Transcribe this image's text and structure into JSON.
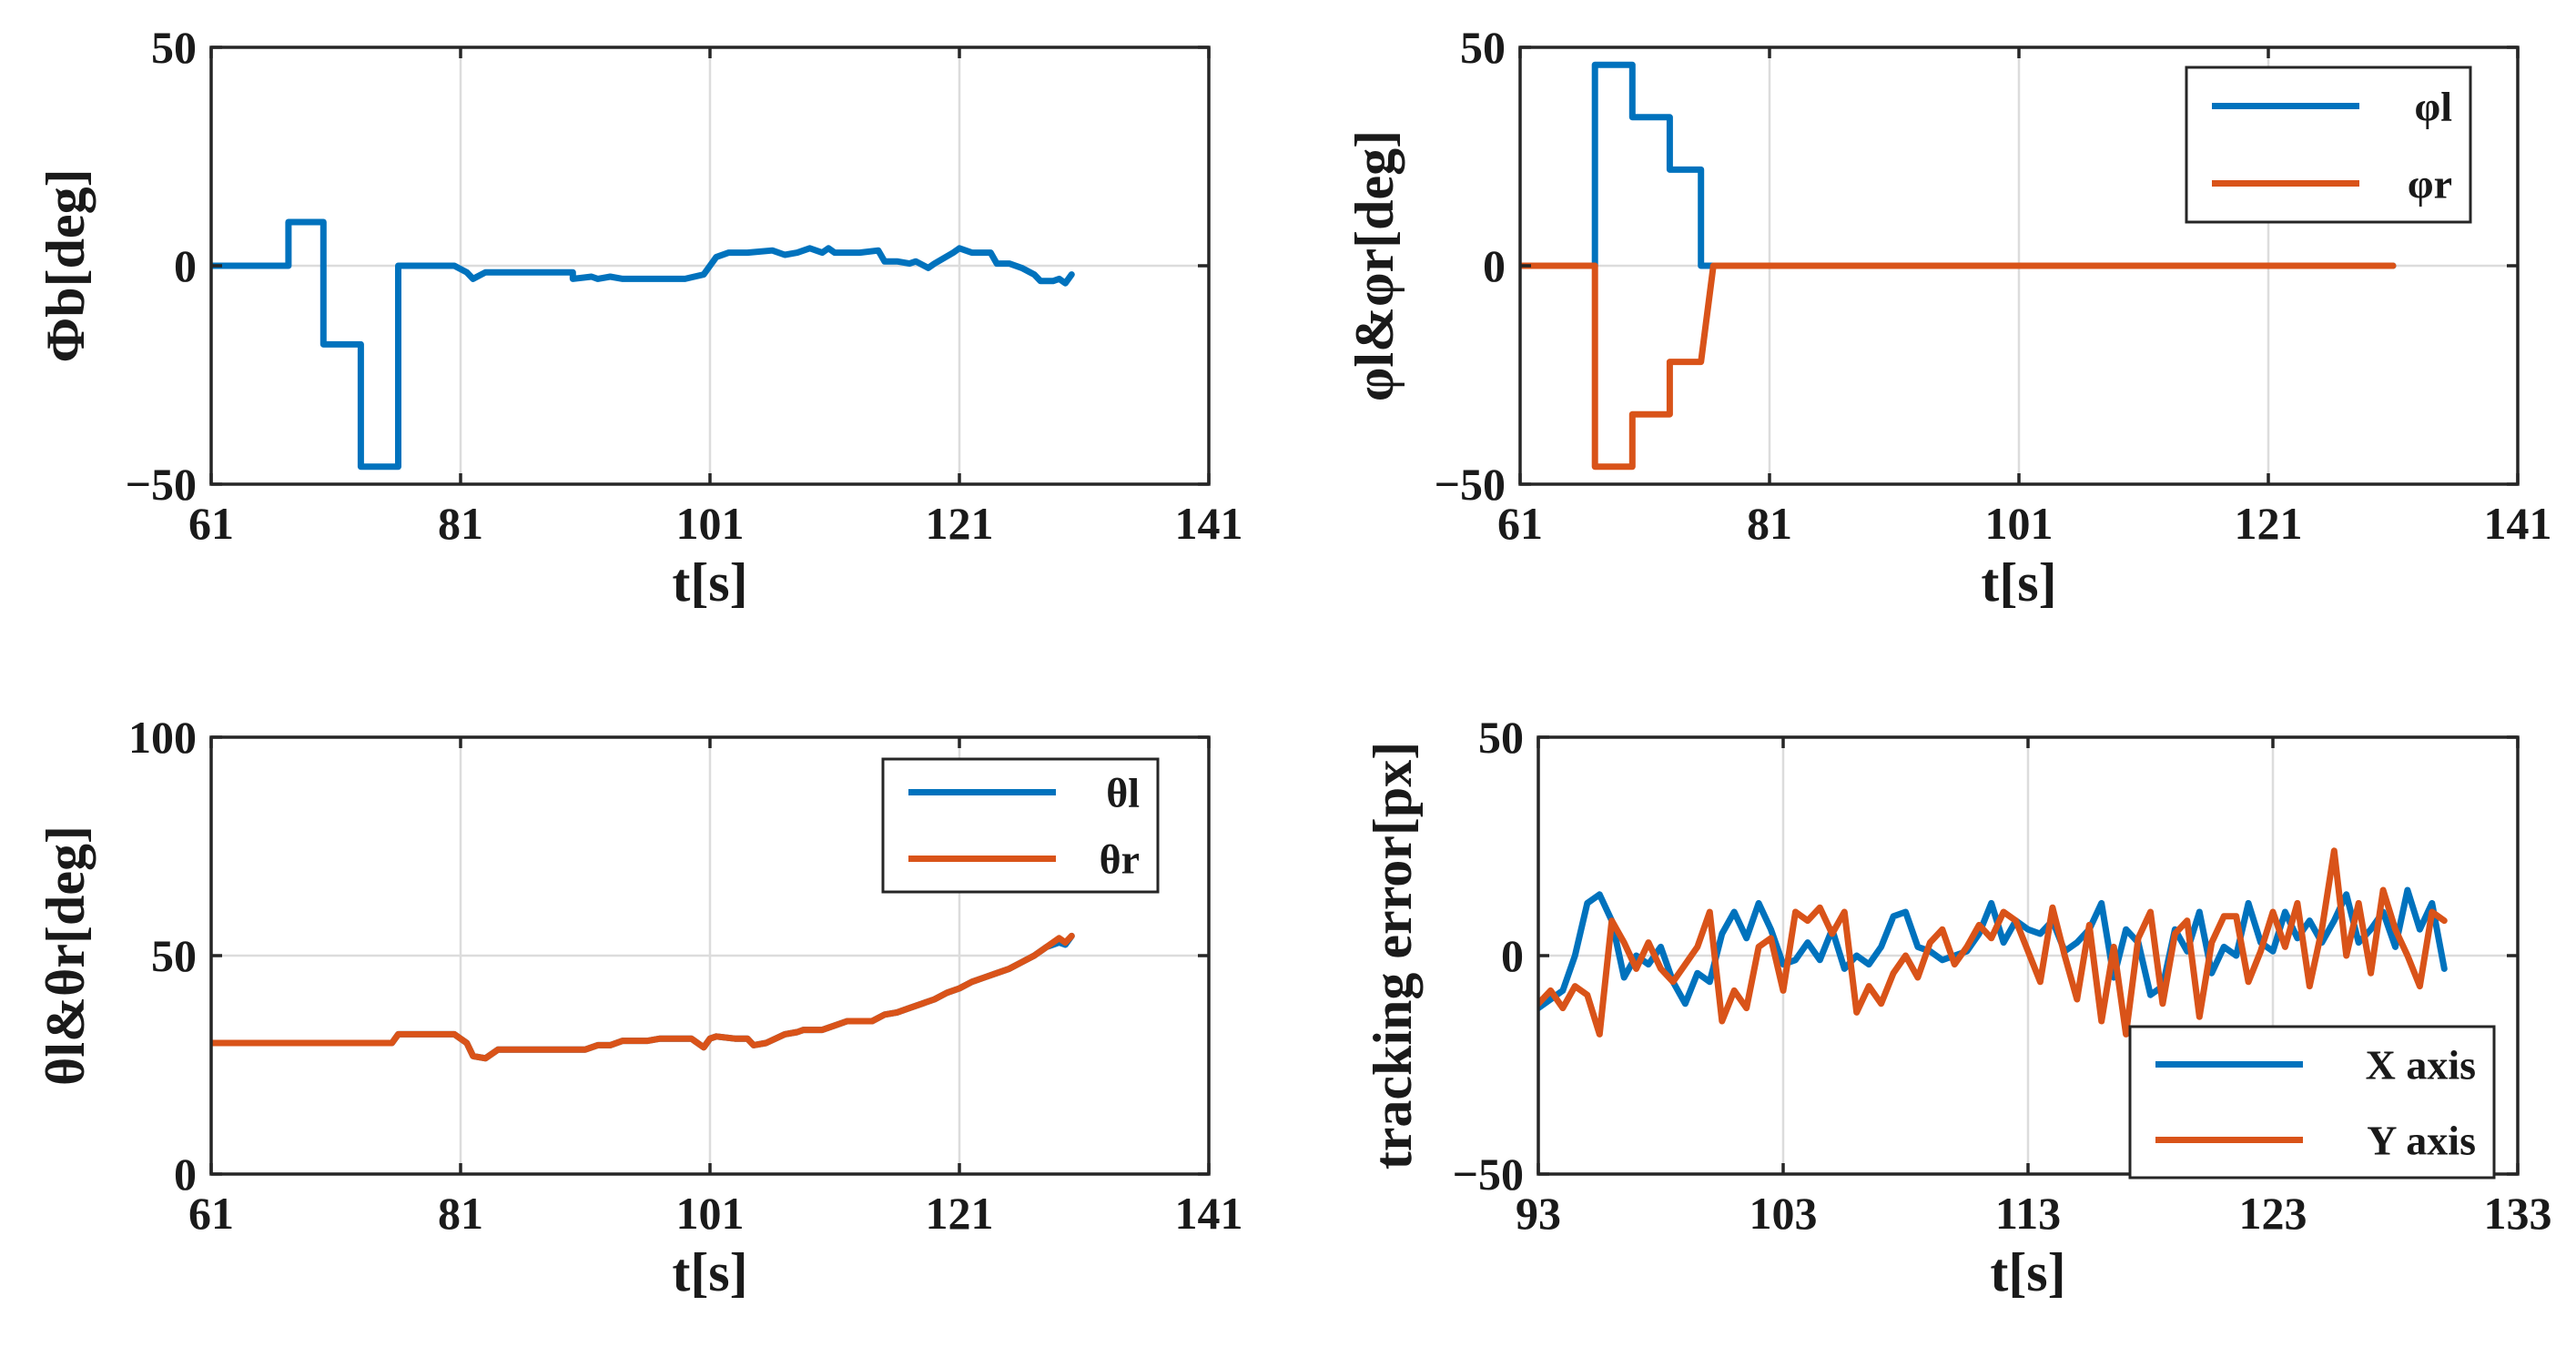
{
  "colors": {
    "blue": "#0072BD",
    "orange": "#D95319"
  },
  "chart_data": [
    {
      "type": "line",
      "xlabel": "t[s]",
      "ylabel": "Φb[deg]",
      "xlim": [
        61,
        141
      ],
      "ylim": [
        -50,
        50
      ],
      "xticks": [
        61,
        81,
        101,
        121,
        141
      ],
      "xtick_labels": [
        "61",
        "81",
        "101",
        "121",
        "141"
      ],
      "yticks": [
        -50,
        0,
        50
      ],
      "ytick_labels": [
        "−50",
        "0",
        "50"
      ],
      "grid": true,
      "legend": null,
      "series": [
        {
          "name": "Φb",
          "color": "#0072BD",
          "x": [
            61,
            67.2,
            67.2,
            70,
            70,
            73,
            73,
            76,
            76,
            80.5,
            81.5,
            82,
            83,
            90,
            90,
            91.5,
            92,
            93,
            94,
            95,
            96,
            98,
            99,
            100.5,
            101,
            101.5,
            102.5,
            104,
            106,
            107,
            108,
            109,
            110,
            110.5,
            111,
            113,
            114.5,
            115,
            116,
            117,
            117.5,
            118.5,
            119,
            120.5,
            121,
            122,
            123.5,
            124,
            125,
            126,
            127,
            127.5,
            128.5,
            129,
            129.5,
            130
          ],
          "y": [
            0,
            0,
            10,
            10,
            -18,
            -18,
            -46,
            -46,
            0,
            0,
            -1.5,
            -3,
            -1.5,
            -1.5,
            -3,
            -2.5,
            -3,
            -2.5,
            -3,
            -3,
            -3,
            -3,
            -3,
            -2,
            0,
            2,
            3,
            3,
            3.5,
            2.5,
            3,
            4,
            3,
            4,
            3,
            3,
            3.5,
            1,
            1,
            0.5,
            1,
            -0.5,
            0.5,
            3,
            4,
            3,
            3,
            0.5,
            0.5,
            -0.5,
            -2,
            -3.5,
            -3.5,
            -3,
            -4,
            -2
          ]
        }
      ]
    },
    {
      "type": "line",
      "xlabel": "t[s]",
      "ylabel": "φl&φr[deg]",
      "xlim": [
        61,
        141
      ],
      "ylim": [
        -50,
        50
      ],
      "xticks": [
        61,
        81,
        101,
        121,
        141
      ],
      "xtick_labels": [
        "61",
        "81",
        "101",
        "121",
        "141"
      ],
      "yticks": [
        -50,
        0,
        50
      ],
      "ytick_labels": [
        "−50",
        "0",
        "50"
      ],
      "grid": true,
      "legend": "top-right",
      "series": [
        {
          "name": "φl",
          "color": "#0072BD",
          "x": [
            61,
            67,
            67,
            70,
            70,
            73,
            73,
            75.5,
            75.5,
            76.5,
            76.5,
            131
          ],
          "y": [
            0,
            0,
            46,
            46,
            34,
            34,
            22,
            22,
            0,
            0,
            0,
            0
          ]
        },
        {
          "name": "φr",
          "color": "#D95319",
          "x": [
            61,
            67,
            67,
            70,
            70,
            73,
            73,
            75.5,
            75.5,
            76.5,
            76.5,
            131
          ],
          "y": [
            0,
            0,
            -46,
            -46,
            -34,
            -34,
            -22,
            -22,
            -22,
            0,
            0,
            0
          ]
        }
      ]
    },
    {
      "type": "line",
      "xlabel": "t[s]",
      "ylabel": "θl&θr[deg]",
      "xlim": [
        61,
        141
      ],
      "ylim": [
        0,
        100
      ],
      "xticks": [
        61,
        81,
        101,
        121,
        141
      ],
      "xtick_labels": [
        "61",
        "81",
        "101",
        "121",
        "141"
      ],
      "yticks": [
        0,
        50,
        100
      ],
      "ytick_labels": [
        "0",
        "50",
        "100"
      ],
      "grid": true,
      "legend": "top-right",
      "series": [
        {
          "name": "θl",
          "color": "#0072BD",
          "x": [
            61,
            75.5,
            76,
            80.5,
            81.5,
            82,
            83,
            84,
            90,
            91,
            92,
            93,
            94,
            95,
            96,
            97,
            99.5,
            100.5,
            101,
            101.5,
            103,
            104,
            104.5,
            105.5,
            107,
            108,
            108.5,
            110,
            111,
            112,
            113,
            114,
            115,
            116,
            117,
            118,
            119,
            120,
            121,
            122,
            123,
            124,
            125,
            126,
            127,
            128,
            129,
            129.5,
            130
          ],
          "y": [
            30,
            30,
            32,
            32,
            30,
            27,
            26.5,
            28.5,
            28.5,
            28.5,
            29.5,
            29.5,
            30.5,
            30.5,
            30.5,
            31,
            31,
            29,
            31,
            31.5,
            31,
            31,
            29.5,
            30,
            32,
            32.5,
            33,
            33,
            34,
            35,
            35,
            35,
            36.5,
            37,
            38,
            39,
            40,
            41.5,
            42.5,
            44,
            45,
            46,
            47,
            48.5,
            50,
            52,
            53,
            52.5,
            54.5
          ]
        },
        {
          "name": "θr",
          "color": "#D95319",
          "x": [
            61,
            75.5,
            76,
            80.5,
            81.5,
            82,
            83,
            84,
            90,
            91,
            92,
            93,
            94,
            95,
            96,
            97,
            99.5,
            100.5,
            101,
            101.5,
            103,
            104,
            104.5,
            105.5,
            107,
            108,
            108.5,
            110,
            111,
            112,
            113,
            114,
            115,
            116,
            117,
            118,
            119,
            120,
            121,
            122,
            123,
            124,
            125,
            126,
            127,
            128,
            129,
            129.5,
            130
          ],
          "y": [
            30,
            30,
            32,
            32,
            30,
            27,
            26.5,
            28.5,
            28.5,
            28.5,
            29.5,
            29.5,
            30.5,
            30.5,
            30.5,
            31,
            31,
            29,
            31,
            31.5,
            31,
            31,
            29.5,
            30,
            32,
            32.5,
            33,
            33,
            34,
            35,
            35,
            35,
            36.5,
            37,
            38,
            39,
            40,
            41.5,
            42.5,
            44,
            45,
            46,
            47,
            48.5,
            50,
            52,
            54,
            53,
            54.5
          ]
        }
      ]
    },
    {
      "type": "line",
      "xlabel": "t[s]",
      "ylabel": "tracking error[px]",
      "xlim": [
        93,
        133
      ],
      "ylim": [
        -50,
        50
      ],
      "xticks": [
        93,
        103,
        113,
        123,
        133
      ],
      "xtick_labels": [
        "93",
        "103",
        "113",
        "123",
        "133"
      ],
      "yticks": [
        -50,
        0,
        50
      ],
      "ytick_labels": [
        "−50",
        "0",
        "50"
      ],
      "grid": true,
      "legend": "bottom-right",
      "series": [
        {
          "name": "X axis",
          "color": "#0072BD",
          "x": [
            93,
            93.5,
            94,
            94.5,
            95,
            95.5,
            96,
            96.5,
            97,
            97.5,
            98,
            98.5,
            99,
            99.5,
            100,
            100.5,
            101,
            101.5,
            102,
            102.5,
            103,
            103.5,
            104,
            104.5,
            105,
            105.5,
            106,
            106.5,
            107,
            107.5,
            108,
            108.5,
            109,
            109.5,
            110,
            110.5,
            111,
            111.5,
            112,
            112.5,
            113,
            113.5,
            114,
            114.5,
            115,
            115.5,
            116,
            116.5,
            117,
            117.5,
            118,
            118.5,
            119,
            119.5,
            120,
            120.5,
            121,
            121.5,
            122,
            122.5,
            123,
            123.5,
            124,
            124.5,
            125,
            125.5,
            126,
            126.5,
            127,
            127.5,
            128,
            128.5,
            129,
            129.5,
            130
          ],
          "y": [
            -12,
            -10,
            -8,
            0,
            12,
            14,
            8,
            -5,
            0,
            -2,
            2,
            -6,
            -11,
            -4,
            -6,
            5,
            10,
            4,
            12,
            6,
            -2,
            -1,
            3,
            -1,
            6,
            -3,
            0,
            -2,
            2,
            9,
            10,
            2,
            1,
            -1,
            0,
            1,
            5,
            12,
            3,
            8,
            6,
            5,
            8,
            1,
            3,
            6,
            12,
            -5,
            6,
            3,
            -9,
            -7,
            6,
            1,
            10,
            -4,
            2,
            0,
            12,
            3,
            1,
            10,
            4,
            8,
            3,
            8,
            14,
            3,
            6,
            10,
            2,
            15,
            6,
            12,
            -3
          ]
        },
        {
          "name": "Y axis",
          "color": "#D95319",
          "x": [
            93,
            93.5,
            94,
            94.5,
            95,
            95.5,
            96,
            96.5,
            97,
            97.5,
            98,
            98.5,
            99,
            99.5,
            100,
            100.5,
            101,
            101.5,
            102,
            102.5,
            103,
            103.5,
            104,
            104.5,
            105,
            105.5,
            106,
            106.5,
            107,
            107.5,
            108,
            108.5,
            109,
            109.5,
            110,
            110.5,
            111,
            111.5,
            112,
            112.5,
            113,
            113.5,
            114,
            114.5,
            115,
            115.5,
            116,
            116.5,
            117,
            117.5,
            118,
            118.5,
            119,
            119.5,
            120,
            120.5,
            121,
            121.5,
            122,
            122.5,
            123,
            123.5,
            124,
            124.5,
            125,
            125.5,
            126,
            126.5,
            127,
            127.5,
            128,
            128.5,
            129,
            129.5,
            130
          ],
          "y": [
            -11,
            -8,
            -12,
            -7,
            -9,
            -18,
            8,
            3,
            -3,
            3,
            -3,
            -6,
            -2,
            2,
            10,
            -15,
            -8,
            -12,
            2,
            4,
            -8,
            10,
            8,
            11,
            5,
            10,
            -13,
            -7,
            -11,
            -4,
            0,
            -5,
            3,
            6,
            -2,
            2,
            7,
            4,
            10,
            8,
            1,
            -6,
            11,
            0,
            -10,
            7,
            -15,
            2,
            -18,
            4,
            10,
            -11,
            5,
            8,
            -14,
            3,
            9,
            9,
            -6,
            1,
            10,
            2,
            12,
            -7,
            6,
            24,
            0,
            12,
            -4,
            15,
            6,
            0,
            -7,
            10,
            8
          ]
        }
      ]
    }
  ]
}
